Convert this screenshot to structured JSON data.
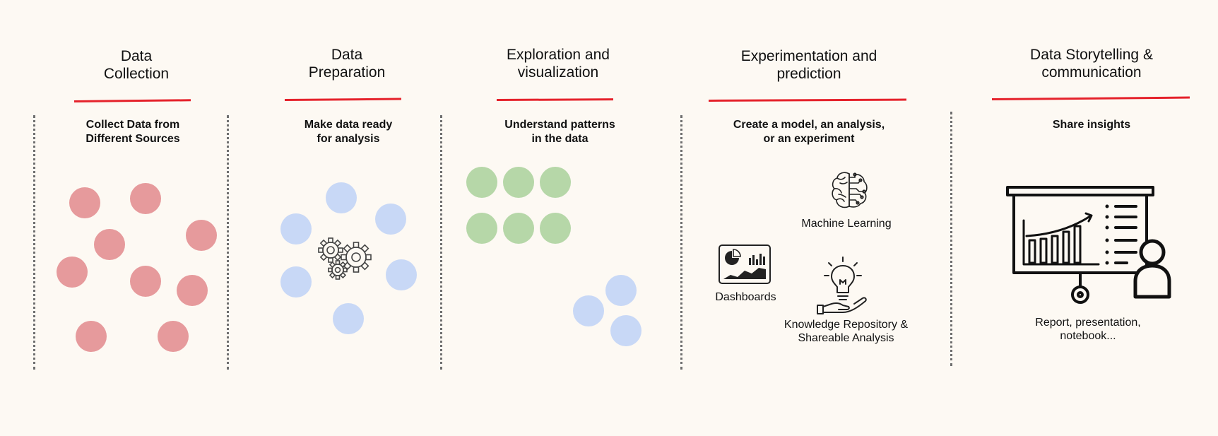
{
  "columns": [
    {
      "title": "Data\nCollection",
      "subtitle": "Collect Data from\nDifferent Sources"
    },
    {
      "title": "Data\nPreparation",
      "subtitle": "Make data ready\nfor analysis"
    },
    {
      "title": "Exploration and\nvisualization",
      "subtitle": "Understand patterns\nin the data"
    },
    {
      "title": "Experimentation and\nprediction",
      "subtitle": "Create a model, an analysis,\nor an experiment"
    },
    {
      "title": "Data Storytelling &\ncommunication",
      "subtitle": "Share insights"
    }
  ],
  "captions": {
    "machine_learning": "Machine Learning",
    "dashboards": "Dashboards",
    "knowledge_repository": "Knowledge Repository &\nShareable Analysis",
    "report": "Report, presentation,\nnotebook..."
  },
  "colors": {
    "accent_line": "#e5222b",
    "raw_data": "#e69a9c",
    "prepared_data": "#c8d8f6",
    "patterns": "#b6d7a8",
    "background": "#fdf9f3"
  },
  "icons": [
    "brain-icon",
    "dashboard-icon",
    "lightbulb-hand-icon",
    "presentation-board-icon",
    "gears-icon"
  ]
}
